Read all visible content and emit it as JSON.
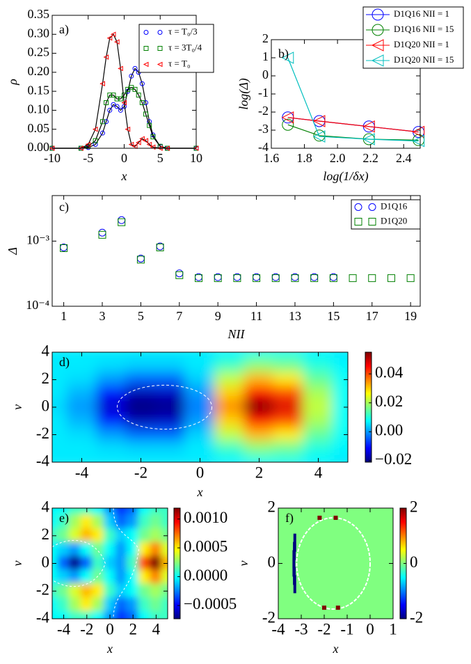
{
  "chart_data": [
    {
      "type": "line",
      "panel_label": "a)",
      "xlabel": "x",
      "ylabel": "ρ",
      "xlim": [
        -10,
        10
      ],
      "ylim": [
        0,
        0.35
      ],
      "xticks": [
        -10,
        -5,
        0,
        5,
        10
      ],
      "yticks": [
        {
          "value": 0,
          "label": "0.00"
        },
        {
          "value": 0.05,
          "label": "0.05"
        },
        {
          "value": 0.1,
          "label": "0.10"
        },
        {
          "value": 0.15,
          "label": "0.15"
        },
        {
          "value": 0.2,
          "label": "0.20"
        },
        {
          "value": 0.25,
          "label": "0.25"
        },
        {
          "value": 0.3,
          "label": "0.30"
        },
        {
          "value": 0.35,
          "label": "0.35"
        }
      ],
      "legend": "upper right",
      "line_color": "#000000",
      "x": [
        -10,
        -6,
        -5,
        -4,
        -3,
        -2.5,
        -2,
        -1.5,
        -1,
        -0.5,
        0,
        0.5,
        1,
        1.5,
        2,
        2.5,
        3,
        3.5,
        4,
        5,
        6,
        10
      ],
      "series": [
        {
          "name": "τ = T₀/3",
          "color": "#0000ff",
          "marker": "o",
          "values": [
            0,
            0,
            0.002,
            0.01,
            0.04,
            0.07,
            0.1,
            0.115,
            0.11,
            0.1,
            0.11,
            0.15,
            0.19,
            0.21,
            0.2,
            0.17,
            0.12,
            0.07,
            0.035,
            0.005,
            0,
            0
          ]
        },
        {
          "name": "τ = 3T₀/4",
          "color": "#008000",
          "marker": "s",
          "values": [
            0,
            0,
            0.005,
            0.02,
            0.07,
            0.12,
            0.14,
            0.14,
            0.13,
            0.13,
            0.14,
            0.155,
            0.16,
            0.155,
            0.14,
            0.12,
            0.09,
            0.06,
            0.03,
            0.005,
            0,
            0
          ]
        },
        {
          "name": "τ = T₀",
          "color": "#ff0000",
          "marker": "<",
          "values": [
            0,
            0,
            0.01,
            0.05,
            0.17,
            0.24,
            0.29,
            0.3,
            0.28,
            0.21,
            0.12,
            0.05,
            0.01,
            0.005,
            0.015,
            0.025,
            0.02,
            0.01,
            0.003,
            0,
            0,
            0
          ]
        }
      ]
    },
    {
      "type": "line",
      "panel_label": "b)",
      "xlabel": "log(1/δx)",
      "ylabel": "log(Δ)",
      "xlim": [
        1.6,
        2.5
      ],
      "ylim": [
        -4,
        2
      ],
      "xticks": [
        1.6,
        1.8,
        {
          "value": 2,
          "label": "2.0"
        },
        2.2,
        2.4
      ],
      "yticks": [
        -4,
        -3,
        -2,
        -1,
        0,
        1,
        2
      ],
      "legend": "upper right",
      "x": [
        1.7,
        1.89,
        2.19,
        2.49
      ],
      "series": [
        {
          "name": "D1Q16 NII = 1",
          "color": "#0000ff",
          "marker": "o",
          "values": [
            -2.3,
            -2.5,
            -2.8,
            -3.1
          ]
        },
        {
          "name": "D1Q16 NII = 15",
          "color": "#008000",
          "marker": "o",
          "values": [
            -2.7,
            -3.3,
            -3.5,
            -3.55
          ]
        },
        {
          "name": "D1Q20 NII = 1",
          "color": "#ff0000",
          "marker": "<",
          "values": [
            -2.3,
            -2.5,
            -2.8,
            -3.1
          ]
        },
        {
          "name": "D1Q20 NII = 15",
          "color": "#00bfbf",
          "marker": "<",
          "values": [
            1,
            -3.35,
            -3.5,
            -3.6
          ]
        }
      ]
    },
    {
      "type": "scatter",
      "panel_label": "c)",
      "xlabel": "NII",
      "ylabel": "Δ",
      "log_y": true,
      "xlim": [
        0.4,
        19.5
      ],
      "ylim": [
        0.0001,
        0.005
      ],
      "xticks": [
        1,
        3,
        5,
        7,
        9,
        11,
        13,
        15,
        17,
        19
      ],
      "yticks": [
        {
          "value": 0.0001,
          "label": "10⁻⁴"
        },
        {
          "value": 0.001,
          "label": "10⁻³"
        }
      ],
      "legend": "upper right",
      "series": [
        {
          "name": "D1Q16",
          "color": "#0000ff",
          "marker": "o",
          "x": [
            1,
            3,
            4,
            5,
            6,
            7,
            8,
            9,
            10,
            11,
            12,
            13,
            14,
            15
          ],
          "values": [
            0.0008,
            0.00135,
            0.0021,
            0.00054,
            0.00083,
            0.00032,
            0.00028,
            0.00028,
            0.00028,
            0.00028,
            0.00028,
            0.00028,
            0.00028,
            0.00028
          ]
        },
        {
          "name": "D1Q20",
          "color": "#008000",
          "marker": "s",
          "x": [
            1,
            3,
            4,
            5,
            6,
            7,
            8,
            9,
            10,
            11,
            12,
            13,
            14,
            15,
            16,
            17,
            18,
            19
          ],
          "values": [
            0.00078,
            0.00125,
            0.00195,
            0.00052,
            0.0008,
            0.0003,
            0.00027,
            0.00027,
            0.00027,
            0.00027,
            0.00027,
            0.00027,
            0.00027,
            0.00027,
            0.00027,
            0.00027,
            0.00027,
            0.00027
          ]
        }
      ]
    },
    {
      "type": "heatmap",
      "panel_label": "d)",
      "xlabel": "x",
      "ylabel": "v",
      "cmap": "jet",
      "xlim": [
        -5,
        5
      ],
      "ylim": [
        -4,
        4
      ],
      "xticks": [
        -4,
        -2,
        0,
        2,
        4
      ],
      "yticks": [
        -4,
        -2,
        0,
        2,
        4
      ],
      "clim": [
        -0.021,
        0.055
      ],
      "cticks": [
        {
          "value": -0.02,
          "label": "−0.02"
        },
        {
          "value": 0,
          "label": "0.00"
        },
        {
          "value": 0.02,
          "label": "0.02"
        },
        {
          "value": 0.04,
          "label": "0.04"
        }
      ],
      "x": [
        -5,
        -4,
        -3,
        -2,
        -1,
        0,
        1,
        2,
        3,
        4,
        5
      ],
      "y": [
        4,
        3,
        2,
        1,
        0,
        -1,
        -2,
        -3,
        -4
      ],
      "z": [
        [
          0.006,
          0.006,
          0.006,
          0.006,
          0.006,
          0.006,
          0.007,
          0.009,
          0.009,
          0.007,
          0.006
        ],
        [
          0.006,
          0.006,
          0.005,
          0.004,
          0.004,
          0.006,
          0.012,
          0.018,
          0.016,
          0.01,
          0.007
        ],
        [
          0.006,
          0.005,
          0,
          -0.004,
          -0.004,
          0.004,
          0.022,
          0.032,
          0.028,
          0.015,
          0.008
        ],
        [
          0.006,
          0.002,
          -0.01,
          -0.017,
          -0.016,
          0,
          0.03,
          0.045,
          0.04,
          0.02,
          0.008
        ],
        [
          0.005,
          0,
          -0.015,
          -0.021,
          -0.02,
          -0.002,
          0.035,
          0.055,
          0.048,
          0.022,
          0.008
        ],
        [
          0.006,
          0.002,
          -0.01,
          -0.017,
          -0.016,
          0,
          0.03,
          0.045,
          0.04,
          0.02,
          0.008
        ],
        [
          0.006,
          0.005,
          0,
          -0.004,
          -0.004,
          0.004,
          0.022,
          0.032,
          0.028,
          0.015,
          0.008
        ],
        [
          0.006,
          0.006,
          0.005,
          0.004,
          0.004,
          0.006,
          0.012,
          0.018,
          0.016,
          0.01,
          0.007
        ],
        [
          0.006,
          0.006,
          0.006,
          0.006,
          0.006,
          0.006,
          0.007,
          0.009,
          0.009,
          0.007,
          0.006
        ]
      ]
    },
    {
      "type": "heatmap",
      "panel_label": "e)",
      "xlabel": "x",
      "ylabel": "v",
      "cmap": "jet",
      "xlim": [
        -5,
        5
      ],
      "ylim": [
        -4,
        4
      ],
      "xticks": [
        -4,
        -2,
        0,
        2,
        4
      ],
      "yticks": [
        -4,
        -2,
        0,
        2,
        4
      ],
      "clim": [
        -0.00073,
        0.00119
      ],
      "cticks": [
        {
          "value": -0.0005,
          "label": "−0.0005"
        },
        {
          "value": 0,
          "label": "0.0000"
        },
        {
          "value": 0.0005,
          "label": "0.0005"
        },
        {
          "value": 0.001,
          "label": "0.0010"
        }
      ],
      "x": [
        -5,
        -4,
        -3,
        -2,
        -1,
        0,
        1,
        2,
        3,
        4,
        5
      ],
      "y": [
        4,
        3,
        2,
        1,
        0,
        -1,
        -2,
        -3,
        -4
      ],
      "z": [
        [
          0,
          0,
          0.0001,
          0.0001,
          0,
          -0.0002,
          -0.0004,
          -0.0003,
          0,
          0.0001,
          0.0001
        ],
        [
          0,
          0.0001,
          0.0003,
          0.0005,
          0.0003,
          -0.0001,
          -0.0003,
          -0.0002,
          0.0001,
          0.0002,
          0.0001
        ],
        [
          0.0001,
          0.0002,
          0.0004,
          0.0006,
          0.0005,
          0.0001,
          -0.0001,
          0,
          0.0002,
          0.0003,
          0.0002
        ],
        [
          0,
          -0.0001,
          -0.0002,
          0,
          0.0002,
          0,
          -0.0002,
          0,
          0.0005,
          0.0007,
          0.0004
        ],
        [
          0,
          -0.0003,
          -0.0007,
          -0.0003,
          0.0001,
          -0.0001,
          -0.0002,
          0.0001,
          0.0008,
          0.0012,
          0.0006
        ],
        [
          0,
          -0.0001,
          -0.0002,
          0,
          0.0002,
          0,
          -0.0002,
          0,
          0.0005,
          0.0007,
          0.0004
        ],
        [
          0.0001,
          0.0002,
          0.0004,
          0.0006,
          0.0005,
          0.0001,
          -0.0001,
          0,
          0.0002,
          0.0003,
          0.0002
        ],
        [
          0,
          0.0001,
          0.0003,
          0.0005,
          0.0003,
          -0.0001,
          -0.0003,
          -0.0002,
          0.0001,
          0.0002,
          0.0001
        ],
        [
          0,
          0,
          0.0001,
          0.0001,
          0,
          -0.0002,
          -0.0004,
          -0.0003,
          0,
          0.0001,
          0.0001
        ]
      ]
    },
    {
      "type": "cells",
      "panel_label": "f)",
      "xlabel": "x",
      "ylabel": "v",
      "cmap": "jet",
      "xlim": [
        -4,
        1
      ],
      "ylim": [
        -2,
        2
      ],
      "xticks": [
        -4,
        -3,
        -2,
        -1,
        0,
        1
      ],
      "yticks": [
        -2,
        0,
        2
      ],
      "clim": [
        -2,
        2
      ],
      "cticks": [
        -2,
        0,
        2
      ],
      "background": 0,
      "cells": [
        {
          "x": -3.28,
          "y": 0.75,
          "value": -2
        },
        {
          "x": -3.3,
          "y": 0.45,
          "value": -2
        },
        {
          "x": -3.32,
          "y": 0.15,
          "value": -2
        },
        {
          "x": -3.32,
          "y": -0.15,
          "value": -2
        },
        {
          "x": -3.3,
          "y": -0.45,
          "value": -2
        },
        {
          "x": -3.28,
          "y": -0.75,
          "value": -2
        },
        {
          "x": -2.2,
          "y": 1.65,
          "value": 2
        },
        {
          "x": -1.5,
          "y": 1.65,
          "value": 2
        },
        {
          "x": -2.0,
          "y": -1.6,
          "value": 2
        },
        {
          "x": -1.4,
          "y": -1.6,
          "value": 2
        }
      ]
    }
  ]
}
